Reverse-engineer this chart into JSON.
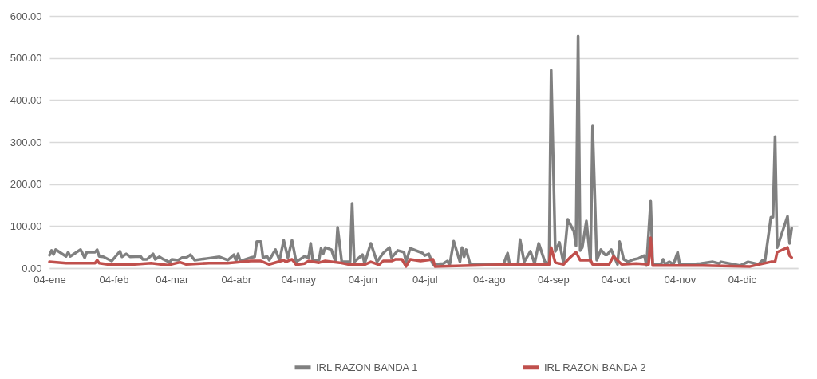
{
  "chart_data": {
    "type": "line",
    "xlim": [
      "--01-04",
      "--12-31"
    ],
    "xticks": [
      {
        "value": "--01-04",
        "label": "04-ene"
      },
      {
        "value": "--02-04",
        "label": "04-feb"
      },
      {
        "value": "--03-04",
        "label": "04-mar"
      },
      {
        "value": "--04-04",
        "label": "04-abr"
      },
      {
        "value": "--05-04",
        "label": "04-may"
      },
      {
        "value": "--06-04",
        "label": "04-jun"
      },
      {
        "value": "--07-04",
        "label": "04-jul"
      },
      {
        "value": "--08-04",
        "label": "04-ago"
      },
      {
        "value": "--09-04",
        "label": "04-sep"
      },
      {
        "value": "--10-04",
        "label": "04-oct"
      },
      {
        "value": "--11-04",
        "label": "04-nov"
      },
      {
        "value": "--12-04",
        "label": "04-dic"
      }
    ],
    "ylim": [
      0,
      600
    ],
    "yticks": [
      {
        "value": 0,
        "label": "0.00"
      },
      {
        "value": 100,
        "label": "100.00"
      },
      {
        "value": 200,
        "label": "200.00"
      },
      {
        "value": 300,
        "label": "300.00"
      },
      {
        "value": 400,
        "label": "400.00"
      },
      {
        "value": 500,
        "label": "500.00"
      },
      {
        "value": 600,
        "label": "600.00"
      }
    ],
    "grid": "y",
    "legend": "bottom",
    "line_style": "solid",
    "series": [
      {
        "name": "IRL RAZON BANDA 1",
        "color": "#808080",
        "x": [
          "--01-04",
          "--01-05",
          "--01-06",
          "--01-07",
          "--01-12",
          "--01-13",
          "--01-14",
          "--01-19",
          "--01-21",
          "--01-22",
          "--01-26",
          "--01-27",
          "--01-28",
          "--01-30",
          "--02-03",
          "--02-07",
          "--02-08",
          "--02-10",
          "--02-12",
          "--02-17",
          "--02-18",
          "--02-20",
          "--02-23",
          "--02-24",
          "--02-26",
          "--02-28",
          "--03-03",
          "--03-04",
          "--03-07",
          "--03-09",
          "--03-11",
          "--03-13",
          "--03-15",
          "--03-21",
          "--03-27",
          "--03-31",
          "--04-03",
          "--04-04",
          "--04-05",
          "--04-06",
          "--04-11",
          "--04-13",
          "--04-14",
          "--04-16",
          "--04-17",
          "--04-19",
          "--04-20",
          "--04-23",
          "--04-25",
          "--04-27",
          "--04-29",
          "--05-01",
          "--05-03",
          "--05-07",
          "--05-09",
          "--05-10",
          "--05-11",
          "--05-14",
          "--05-15",
          "--05-16",
          "--05-17",
          "--05-20",
          "--05-22",
          "--05-23",
          "--05-25",
          "--05-29",
          "--05-30",
          "--05-31",
          "--06-04",
          "--06-05",
          "--06-08",
          "--06-11",
          "--06-14",
          "--06-17",
          "--06-18",
          "--06-21",
          "--06-24",
          "--06-25",
          "--06-27",
          "--07-03",
          "--07-04",
          "--07-06",
          "--07-08",
          "--07-13",
          "--07-15",
          "--07-16",
          "--07-18",
          "--07-21",
          "--07-22",
          "--07-23",
          "--07-24",
          "--07-26",
          "--08-02",
          "--08-08",
          "--08-11",
          "--08-13",
          "--08-14",
          "--08-18",
          "--08-19",
          "--08-21",
          "--08-24",
          "--08-26",
          "--08-28",
          "--08-31",
          "--09-02",
          "--09-03",
          "--09-05",
          "--09-07",
          "--09-09",
          "--09-11",
          "--09-14",
          "--09-15",
          "--09-16",
          "--09-17",
          "--09-18",
          "--09-20",
          "--09-22",
          "--09-23",
          "--09-25",
          "--09-27",
          "--09-29",
          "--09-30",
          "--10-02",
          "--10-05",
          "--10-06",
          "--10-08",
          "--10-10",
          "--10-13",
          "--10-15",
          "--10-18",
          "--10-19",
          "--10-21",
          "--10-22",
          "--10-26",
          "--10-27",
          "--10-28",
          "--10-30",
          "--11-01",
          "--11-03",
          "--11-04",
          "--11-09",
          "--11-14",
          "--11-20",
          "--11-23",
          "--11-24",
          "--11-30",
          "--12-03",
          "--12-07",
          "--12-12",
          "--12-14",
          "--12-15",
          "--12-18",
          "--12-19",
          "--12-20",
          "--12-21",
          "--12-26",
          "--12-27",
          "--12-28"
        ],
        "values": [
          31,
          42,
          33,
          44,
          28,
          38,
          28,
          44,
          25,
          38,
          38,
          44,
          28,
          27,
          17,
          40,
          27,
          34,
          27,
          28,
          21,
          21,
          34,
          21,
          27,
          21,
          14,
          21,
          19,
          25,
          25,
          32,
          19,
          23,
          27,
          19,
          32,
          17,
          34,
          17,
          25,
          27,
          63,
          63,
          25,
          28,
          19,
          44,
          19,
          66,
          25,
          66,
          15,
          28,
          25,
          59,
          19,
          19,
          47,
          34,
          49,
          44,
          15,
          97,
          15,
          15,
          154,
          15,
          32,
          11,
          59,
          15,
          36,
          49,
          25,
          42,
          38,
          15,
          47,
          36,
          30,
          34,
          9,
          11,
          17,
          6,
          64,
          15,
          49,
          27,
          44,
          8,
          9,
          8,
          9,
          36,
          9,
          9,
          68,
          15,
          40,
          11,
          59,
          15,
          9,
          471,
          40,
          61,
          11,
          116,
          87,
          53,
          552,
          42,
          49,
          112,
          15,
          338,
          19,
          44,
          32,
          32,
          44,
          9,
          63,
          21,
          15,
          21,
          23,
          30,
          6,
          159,
          9,
          9,
          21,
          9,
          15,
          9,
          38,
          9,
          9,
          11,
          15,
          11,
          15,
          9,
          6,
          15,
          9,
          19,
          13,
          121,
          121,
          313,
          49,
          123,
          59,
          95
        ]
      },
      {
        "name": "IRL RAZON BANDA 2",
        "color": "#c0504d",
        "x": [
          "--01-04",
          "--01-12",
          "--01-26",
          "--01-27",
          "--01-28",
          "--02-01",
          "--02-14",
          "--02-22",
          "--03-02",
          "--03-08",
          "--03-11",
          "--03-22",
          "--03-31",
          "--04-11",
          "--04-16",
          "--04-20",
          "--04-27",
          "--04-28",
          "--05-01",
          "--05-03",
          "--05-07",
          "--05-09",
          "--05-14",
          "--05-17",
          "--05-24",
          "--05-29",
          "--06-05",
          "--06-08",
          "--06-12",
          "--06-14",
          "--06-18",
          "--06-20",
          "--06-23",
          "--06-25",
          "--06-27",
          "--07-02",
          "--07-08",
          "--07-09",
          "--07-26",
          "--08-09",
          "--08-28",
          "--09-02",
          "--09-03",
          "--09-05",
          "--09-09",
          "--09-12",
          "--09-15",
          "--09-17",
          "--09-22",
          "--09-23",
          "--10-01",
          "--10-03",
          "--10-07",
          "--10-14",
          "--10-20",
          "--10-21",
          "--10-22",
          "--11-15",
          "--12-08",
          "--12-18",
          "--12-20",
          "--12-21",
          "--12-26",
          "--12-27",
          "--12-28"
        ],
        "values": [
          15,
          12,
          12,
          19,
          12,
          9,
          9,
          12,
          7,
          14,
          9,
          12,
          12,
          17,
          17,
          9,
          19,
          15,
          21,
          8,
          11,
          17,
          13,
          17,
          13,
          8,
          8,
          15,
          8,
          17,
          17,
          21,
          21,
          4,
          21,
          17,
          21,
          4,
          6,
          8,
          9,
          9,
          49,
          13,
          9,
          25,
          38,
          19,
          19,
          9,
          9,
          28,
          9,
          11,
          9,
          72,
          6,
          6,
          4,
          15,
          15,
          38,
          49,
          30,
          25
        ]
      }
    ]
  }
}
